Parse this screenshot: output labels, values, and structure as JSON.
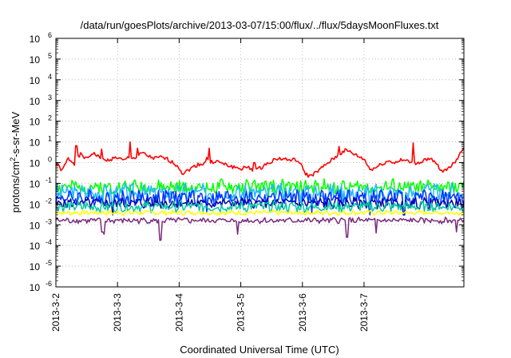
{
  "chart_data": {
    "type": "line",
    "title": "/data/run/goesPlots/archive/2013-03-07/15:00/flux/../flux/5daysMoonFluxes.txt",
    "xlabel": "Coordinated Universal Time (UTC)",
    "ylabel": "protons/cm2-s-sr-MeV",
    "ylabel_parts": {
      "pre": "protons/cm",
      "sup": "2",
      "post": "-s-sr-MeV"
    },
    "yscale": "log",
    "ylim_exp": [
      -6,
      6
    ],
    "y_tick_labels": [
      {
        "base": "10",
        "exp": "-6"
      },
      {
        "base": "10",
        "exp": "-5"
      },
      {
        "base": "10",
        "exp": "-4"
      },
      {
        "base": "10",
        "exp": "-3"
      },
      {
        "base": "10",
        "exp": "-2"
      },
      {
        "base": "10",
        "exp": "-1"
      },
      {
        "base": "10",
        "exp": "0"
      },
      {
        "base": "10",
        "exp": "1"
      },
      {
        "base": "10",
        "exp": "2"
      },
      {
        "base": "10",
        "exp": "3"
      },
      {
        "base": "10",
        "exp": "4"
      },
      {
        "base": "10",
        "exp": "5"
      },
      {
        "base": "10",
        "exp": "6"
      }
    ],
    "x_tick_labels": [
      "2013-3-2",
      "2013-3-3",
      "2013-3-4",
      "2013-3-5",
      "2013-3-6",
      "2013-3-7"
    ],
    "xlim_days": [
      0,
      6.62
    ],
    "grid": true,
    "legend": "none",
    "series": [
      {
        "color": "#ff0000",
        "values": [
          [
            0.0,
            1.0
          ],
          [
            0.1,
            0.4
          ],
          [
            0.2,
            1.6
          ],
          [
            0.3,
            0.9
          ],
          [
            0.4,
            2.5
          ],
          [
            0.5,
            1.5
          ],
          [
            0.6,
            3.0
          ],
          [
            0.7,
            1.8
          ],
          [
            0.8,
            1.2
          ],
          [
            0.9,
            1.5
          ],
          [
            1.0,
            1.8
          ],
          [
            1.1,
            1.2
          ],
          [
            1.2,
            2.0
          ],
          [
            1.3,
            1.6
          ],
          [
            1.4,
            3.0
          ],
          [
            1.5,
            2.0
          ],
          [
            1.6,
            1.6
          ],
          [
            1.7,
            1.8
          ],
          [
            1.8,
            1.5
          ],
          [
            1.9,
            1.0
          ],
          [
            2.0,
            0.6
          ],
          [
            2.05,
            0.3
          ],
          [
            2.1,
            0.35
          ],
          [
            2.2,
            0.55
          ],
          [
            2.3,
            0.8
          ],
          [
            2.4,
            0.9
          ],
          [
            2.45,
            1.6
          ],
          [
            2.5,
            1.0
          ],
          [
            2.6,
            1.2
          ],
          [
            2.7,
            0.9
          ],
          [
            2.8,
            0.7
          ],
          [
            2.9,
            0.6
          ],
          [
            3.0,
            0.5
          ],
          [
            3.1,
            0.6
          ],
          [
            3.2,
            0.45
          ],
          [
            3.3,
            0.5
          ],
          [
            3.4,
            0.8
          ],
          [
            3.5,
            1.2
          ],
          [
            3.6,
            1.6
          ],
          [
            3.7,
            1.5
          ],
          [
            3.8,
            1.3
          ],
          [
            3.9,
            1.4
          ],
          [
            4.0,
            0.6
          ],
          [
            4.05,
            0.3
          ],
          [
            4.1,
            0.22
          ],
          [
            4.2,
            0.3
          ],
          [
            4.3,
            0.5
          ],
          [
            4.4,
            0.9
          ],
          [
            4.5,
            1.5
          ],
          [
            4.6,
            2.5
          ],
          [
            4.7,
            4.0
          ],
          [
            4.8,
            3.0
          ],
          [
            4.9,
            2.0
          ],
          [
            5.0,
            1.5
          ],
          [
            5.1,
            0.45
          ],
          [
            5.2,
            0.6
          ],
          [
            5.3,
            0.9
          ],
          [
            5.4,
            1.2
          ],
          [
            5.5,
            1.0
          ],
          [
            5.6,
            1.3
          ],
          [
            5.7,
            1.2
          ],
          [
            5.8,
            0.9
          ],
          [
            5.9,
            1.0
          ],
          [
            6.0,
            1.5
          ],
          [
            6.1,
            1.3
          ],
          [
            6.2,
            0.7
          ],
          [
            6.25,
            0.35
          ],
          [
            6.3,
            0.4
          ],
          [
            6.4,
            0.7
          ],
          [
            6.5,
            1.2
          ],
          [
            6.55,
            3.0
          ],
          [
            6.62,
            5.0
          ]
        ],
        "spikes": [
          [
            0.33,
            6.5
          ],
          [
            0.75,
            4.5
          ],
          [
            1.2,
            10.0
          ],
          [
            1.33,
            5.0
          ],
          [
            2.49,
            5.0
          ],
          [
            3.22,
            1.0
          ],
          [
            4.6,
            6.0
          ],
          [
            5.8,
            9.0
          ]
        ],
        "mid": 1.0,
        "amp": 0.4,
        "seed": 1
      },
      {
        "color": "#00ff00",
        "mid": 0.065,
        "amp": 0.32,
        "dips": [],
        "seed": 2
      },
      {
        "color": "#22b8ff",
        "mid": 0.035,
        "amp": 0.38,
        "dips": [
          [
            0.92,
            0.004
          ],
          [
            2.45,
            0.005
          ],
          [
            4.15,
            0.004
          ],
          [
            5.1,
            0.004
          ],
          [
            5.65,
            0.003
          ]
        ],
        "seed": 3
      },
      {
        "color": "#0033ff",
        "mid": 0.02,
        "amp": 0.34,
        "dips": [
          [
            0.92,
            0.004
          ],
          [
            2.45,
            0.004
          ],
          [
            4.15,
            0.004
          ],
          [
            5.1,
            0.003
          ],
          [
            5.65,
            0.003
          ]
        ],
        "seed": 4
      },
      {
        "color": "#0000aa",
        "mid": 0.011,
        "amp": 0.22,
        "dips": [
          [
            0.92,
            0.003
          ],
          [
            5.65,
            0.003
          ]
        ],
        "seed": 5
      },
      {
        "color": "#00c8a0",
        "mid": 0.0075,
        "amp": 0.24,
        "dips": [],
        "seed": 6
      },
      {
        "color": "#ffff00",
        "mid": 0.0038,
        "amp": 0.1,
        "dips": [],
        "seed": 7
      },
      {
        "color": "#7a2a7a",
        "mid": 0.0016,
        "amp": 0.12,
        "dips": [
          [
            0.75,
            0.00045
          ],
          [
            0.78,
            0.00035
          ],
          [
            1.7,
            0.00018
          ],
          [
            2.95,
            0.00035
          ],
          [
            4.72,
            0.00025
          ],
          [
            5.2,
            0.0004
          ],
          [
            6.5,
            0.00045
          ]
        ],
        "seed": 8
      }
    ]
  }
}
